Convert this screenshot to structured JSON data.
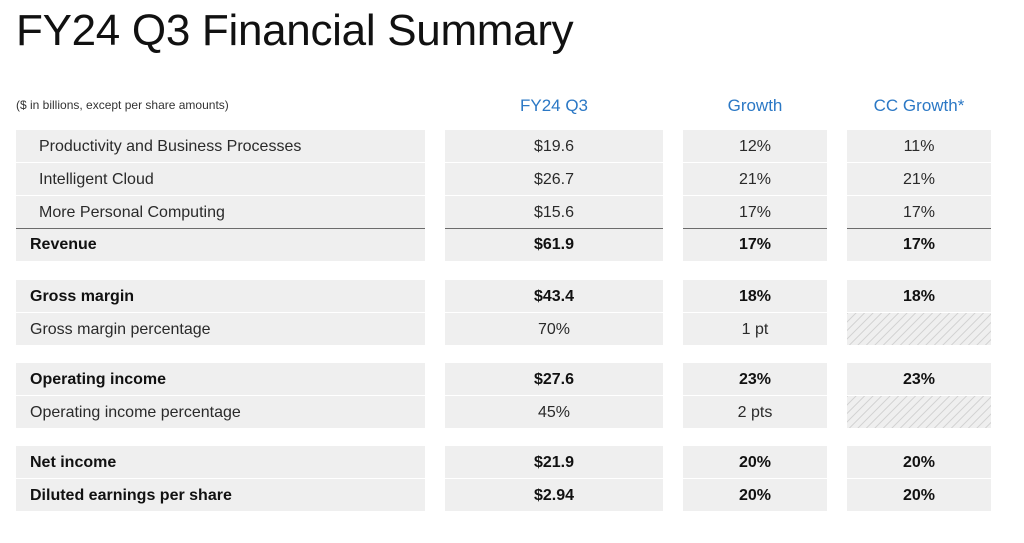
{
  "title": "FY24 Q3 Financial Summary",
  "subtitle": "($ in billions, except per share amounts)",
  "columns": {
    "period": "FY24 Q3",
    "growth": "Growth",
    "cc_growth": "CC Growth*"
  },
  "colors": {
    "header_accent": "#2b78c5",
    "row_fill": "#efefef"
  },
  "rows": [
    {
      "label": "Productivity and Business Processes",
      "value": "$19.6",
      "growth": "12%",
      "cc_growth": "11%"
    },
    {
      "label": "Intelligent Cloud",
      "value": "$26.7",
      "growth": "21%",
      "cc_growth": "21%"
    },
    {
      "label": "More Personal Computing",
      "value": "$15.6",
      "growth": "17%",
      "cc_growth": "17%"
    },
    {
      "label": "Revenue",
      "value": "$61.9",
      "growth": "17%",
      "cc_growth": "17%"
    },
    {
      "label": "Gross margin",
      "value": "$43.4",
      "growth": "18%",
      "cc_growth": "18%"
    },
    {
      "label": "Gross margin percentage",
      "value": "70%",
      "growth": "1 pt",
      "cc_growth": ""
    },
    {
      "label": "Operating income",
      "value": "$27.6",
      "growth": "23%",
      "cc_growth": "23%"
    },
    {
      "label": "Operating income percentage",
      "value": "45%",
      "growth": "2 pts",
      "cc_growth": ""
    },
    {
      "label": "Net income",
      "value": "$21.9",
      "growth": "20%",
      "cc_growth": "20%"
    },
    {
      "label": "Diluted earnings per share",
      "value": "$2.94",
      "growth": "20%",
      "cc_growth": "20%"
    }
  ]
}
